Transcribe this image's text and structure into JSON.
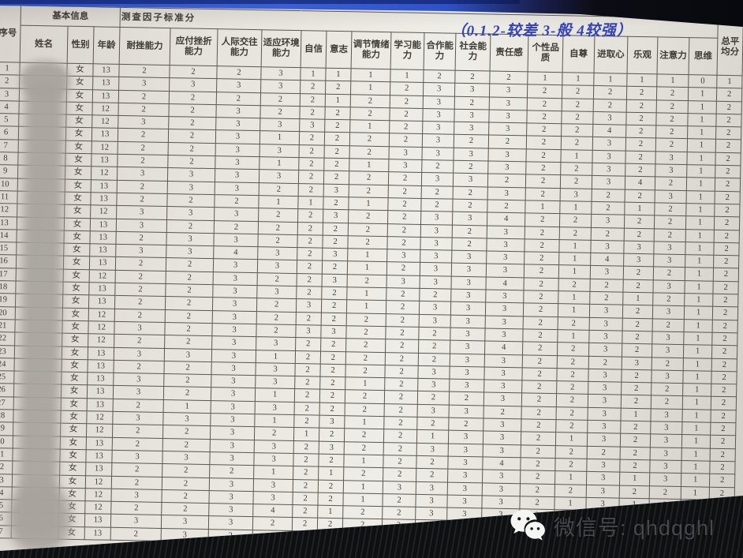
{
  "table": {
    "header_group": {
      "basic_info": "基本信息",
      "survey_title": "测查因子标准分",
      "handwritten_note": "（0.1.2-较差  3-般  4较强）",
      "avg_label": "总平均分"
    },
    "columns": [
      "序号",
      "姓名",
      "性别",
      "年龄",
      "耐挫能力",
      "应付挫折能力",
      "人际交往能力",
      "适应环境能力",
      "自信",
      "意志",
      "调节情绪能力",
      "学习能力",
      "合作能力",
      "社会能力",
      "责任感",
      "个性品质",
      "自尊",
      "进取心",
      "乐观",
      "注意力",
      "思维",
      "总平均分"
    ],
    "rows": [
      {
        "no": "1",
        "name": "",
        "gender": "女",
        "age": "13",
        "scores": [
          "2",
          "2",
          "2",
          "3",
          "1",
          "1",
          "1",
          "1",
          "2",
          "2",
          "2",
          "1",
          "1",
          "1",
          "1",
          "1",
          "0",
          "1"
        ]
      },
      {
        "no": "2",
        "name": "",
        "gender": "女",
        "age": "13",
        "scores": [
          "3",
          "3",
          "3",
          "3",
          "2",
          "2",
          "1",
          "2",
          "3",
          "3",
          "3",
          "2",
          "2",
          "2",
          "2",
          "2",
          "1",
          "2"
        ]
      },
      {
        "no": "3",
        "name": "",
        "gender": "女",
        "age": "13",
        "scores": [
          "2",
          "2",
          "2",
          "2",
          "2",
          "1",
          "2",
          "2",
          "3",
          "2",
          "3",
          "2",
          "2",
          "2",
          "2",
          "2",
          "1",
          "2"
        ]
      },
      {
        "no": "4",
        "name": "",
        "gender": "女",
        "age": "12",
        "scores": [
          "2",
          "2",
          "3",
          "2",
          "2",
          "2",
          "2",
          "2",
          "3",
          "3",
          "3",
          "2",
          "2",
          "3",
          "2",
          "2",
          "1",
          "2"
        ]
      },
      {
        "no": "5",
        "name": "",
        "gender": "女",
        "age": "12",
        "scores": [
          "3",
          "2",
          "3",
          "3",
          "3",
          "2",
          "1",
          "2",
          "3",
          "3",
          "3",
          "2",
          "2",
          "4",
          "2",
          "2",
          "1",
          "2"
        ]
      },
      {
        "no": "6",
        "name": "",
        "gender": "女",
        "age": "13",
        "scores": [
          "2",
          "2",
          "3",
          "1",
          "2",
          "2",
          "2",
          "2",
          "3",
          "2",
          "2",
          "2",
          "2",
          "3",
          "2",
          "2",
          "1",
          "2"
        ]
      },
      {
        "no": "7",
        "name": "",
        "gender": "女",
        "age": "12",
        "scores": [
          "2",
          "2",
          "3",
          "3",
          "2",
          "2",
          "2",
          "3",
          "3",
          "3",
          "3",
          "2",
          "1",
          "3",
          "2",
          "3",
          "1",
          "2"
        ]
      },
      {
        "no": "8",
        "name": "",
        "gender": "女",
        "age": "13",
        "scores": [
          "2",
          "2",
          "3",
          "1",
          "2",
          "2",
          "1",
          "3",
          "2",
          "2",
          "3",
          "2",
          "2",
          "3",
          "2",
          "3",
          "1",
          "2"
        ]
      },
      {
        "no": "9",
        "name": "",
        "gender": "女",
        "age": "12",
        "scores": [
          "3",
          "3",
          "3",
          "3",
          "2",
          "2",
          "2",
          "2",
          "3",
          "3",
          "2",
          "2",
          "2",
          "3",
          "4",
          "2",
          "1",
          "2"
        ]
      },
      {
        "no": "10",
        "name": "",
        "gender": "女",
        "age": "13",
        "scores": [
          "2",
          "3",
          "3",
          "2",
          "2",
          "3",
          "2",
          "2",
          "2",
          "2",
          "3",
          "2",
          "3",
          "2",
          "2",
          "3",
          "1",
          "2"
        ]
      },
      {
        "no": "11",
        "name": "",
        "gender": "女",
        "age": "13",
        "scores": [
          "2",
          "2",
          "2",
          "1",
          "1",
          "2",
          "1",
          "2",
          "2",
          "2",
          "2",
          "1",
          "1",
          "2",
          "1",
          "2",
          "1",
          "2"
        ]
      },
      {
        "no": "12",
        "name": "",
        "gender": "女",
        "age": "12",
        "scores": [
          "3",
          "3",
          "3",
          "2",
          "2",
          "3",
          "2",
          "2",
          "3",
          "3",
          "4",
          "2",
          "2",
          "3",
          "2",
          "2",
          "1",
          "2"
        ]
      },
      {
        "no": "13",
        "name": "",
        "gender": "女",
        "age": "13",
        "scores": [
          "3",
          "2",
          "2",
          "2",
          "2",
          "2",
          "2",
          "2",
          "3",
          "2",
          "3",
          "2",
          "2",
          "2",
          "2",
          "2",
          "1",
          "2"
        ]
      },
      {
        "no": "14",
        "name": "",
        "gender": "女",
        "age": "13",
        "scores": [
          "2",
          "3",
          "3",
          "2",
          "2",
          "2",
          "2",
          "2",
          "3",
          "2",
          "3",
          "2",
          "1",
          "3",
          "3",
          "3",
          "1",
          "2"
        ]
      },
      {
        "no": "15",
        "name": "",
        "gender": "女",
        "age": "13",
        "scores": [
          "3",
          "3",
          "4",
          "3",
          "2",
          "3",
          "1",
          "3",
          "3",
          "3",
          "3",
          "2",
          "1",
          "4",
          "3",
          "3",
          "1",
          "2"
        ]
      },
      {
        "no": "16",
        "name": "",
        "gender": "女",
        "age": "13",
        "scores": [
          "2",
          "2",
          "3",
          "3",
          "2",
          "2",
          "1",
          "2",
          "3",
          "3",
          "3",
          "2",
          "1",
          "3",
          "2",
          "2",
          "1",
          "2"
        ]
      },
      {
        "no": "17",
        "name": "",
        "gender": "女",
        "age": "12",
        "scores": [
          "2",
          "2",
          "3",
          "2",
          "2",
          "3",
          "2",
          "3",
          "3",
          "3",
          "4",
          "2",
          "2",
          "2",
          "2",
          "3",
          "1",
          "2"
        ]
      },
      {
        "no": "18",
        "name": "",
        "gender": "女",
        "age": "13",
        "scores": [
          "2",
          "2",
          "3",
          "3",
          "2",
          "2",
          "1",
          "2",
          "2",
          "3",
          "3",
          "2",
          "1",
          "2",
          "1",
          "2",
          "1",
          "2"
        ]
      },
      {
        "no": "19",
        "name": "",
        "gender": "女",
        "age": "13",
        "scores": [
          "2",
          "2",
          "3",
          "2",
          "3",
          "2",
          "1",
          "2",
          "3",
          "3",
          "3",
          "2",
          "1",
          "3",
          "2",
          "3",
          "1",
          "2"
        ]
      },
      {
        "no": "20",
        "name": "",
        "gender": "女",
        "age": "12",
        "scores": [
          "2",
          "2",
          "3",
          "2",
          "2",
          "2",
          "2",
          "2",
          "3",
          "3",
          "3",
          "2",
          "2",
          "3",
          "2",
          "2",
          "1",
          "2"
        ]
      },
      {
        "no": "21",
        "name": "",
        "gender": "女",
        "age": "12",
        "scores": [
          "3",
          "2",
          "3",
          "2",
          "3",
          "3",
          "2",
          "2",
          "2",
          "3",
          "3",
          "2",
          "1",
          "3",
          "2",
          "3",
          "1",
          "2"
        ]
      },
      {
        "no": "22",
        "name": "",
        "gender": "女",
        "age": "12",
        "scores": [
          "2",
          "2",
          "3",
          "3",
          "2",
          "2",
          "2",
          "2",
          "2",
          "3",
          "4",
          "2",
          "2",
          "3",
          "2",
          "3",
          "1",
          "2"
        ]
      },
      {
        "no": "23",
        "name": "",
        "gender": "女",
        "age": "13",
        "scores": [
          "3",
          "3",
          "3",
          "1",
          "2",
          "2",
          "2",
          "2",
          "2",
          "3",
          "3",
          "2",
          "2",
          "2",
          "3",
          "2",
          "1",
          "2"
        ]
      },
      {
        "no": "24",
        "name": "",
        "gender": "女",
        "age": "13",
        "scores": [
          "2",
          "2",
          "3",
          "3",
          "2",
          "2",
          "2",
          "2",
          "3",
          "3",
          "3",
          "2",
          "2",
          "3",
          "2",
          "3",
          "1",
          "2"
        ]
      },
      {
        "no": "25",
        "name": "",
        "gender": "女",
        "age": "13",
        "scores": [
          "3",
          "2",
          "3",
          "3",
          "2",
          "2",
          "1",
          "2",
          "3",
          "3",
          "3",
          "2",
          "2",
          "3",
          "2",
          "2",
          "1",
          "2"
        ]
      },
      {
        "no": "26",
        "name": "",
        "gender": "女",
        "age": "13",
        "scores": [
          "3",
          "2",
          "3",
          "1",
          "2",
          "2",
          "2",
          "2",
          "2",
          "2",
          "3",
          "2",
          "2",
          "3",
          "2",
          "2",
          "1",
          "2"
        ]
      },
      {
        "no": "27",
        "name": "",
        "gender": "女",
        "age": "13",
        "scores": [
          "2",
          "1",
          "3",
          "3",
          "2",
          "2",
          "2",
          "2",
          "3",
          "3",
          "2",
          "2",
          "2",
          "3",
          "1",
          "3",
          "1",
          "2"
        ]
      },
      {
        "no": "28",
        "name": "",
        "gender": "女",
        "age": "12",
        "scores": [
          "3",
          "3",
          "3",
          "1",
          "2",
          "3",
          "1",
          "2",
          "2",
          "2",
          "3",
          "2",
          "2",
          "3",
          "2",
          "3",
          "1",
          "2"
        ]
      },
      {
        "no": "29",
        "name": "",
        "gender": "女",
        "age": "12",
        "scores": [
          "2",
          "2",
          "3",
          "2",
          "1",
          "2",
          "2",
          "2",
          "1",
          "3",
          "3",
          "2",
          "1",
          "3",
          "2",
          "3",
          "1",
          "2"
        ]
      },
      {
        "no": "30",
        "name": "",
        "gender": "女",
        "age": "13",
        "scores": [
          "2",
          "2",
          "3",
          "3",
          "2",
          "3",
          "2",
          "2",
          "3",
          "3",
          "3",
          "2",
          "2",
          "2",
          "2",
          "3",
          "1",
          "2"
        ]
      },
      {
        "no": "31",
        "name": "",
        "gender": "女",
        "age": "13",
        "scores": [
          "3",
          "3",
          "3",
          "3",
          "2",
          "2",
          "1",
          "2",
          "2",
          "3",
          "4",
          "2",
          "2",
          "3",
          "2",
          "3",
          "1",
          "2"
        ]
      },
      {
        "no": "32",
        "name": "",
        "gender": "女",
        "age": "13",
        "scores": [
          "2",
          "2",
          "2",
          "1",
          "2",
          "1",
          "2",
          "2",
          "2",
          "3",
          "3",
          "2",
          "1",
          "3",
          "1",
          "3",
          "1",
          "2"
        ]
      },
      {
        "no": "33",
        "name": "",
        "gender": "女",
        "age": "12",
        "scores": [
          "2",
          "2",
          "3",
          "3",
          "2",
          "2",
          "1",
          "3",
          "3",
          "3",
          "3",
          "2",
          "2",
          "3",
          "2",
          "2",
          "1",
          "2"
        ]
      },
      {
        "no": "34",
        "name": "",
        "gender": "女",
        "age": "12",
        "scores": [
          "3",
          "2",
          "3",
          "3",
          "2",
          "2",
          "1",
          "2",
          "3",
          "3",
          "3",
          "2",
          "1",
          "3",
          "1",
          "3",
          "1",
          "2"
        ]
      },
      {
        "no": "35",
        "name": "",
        "gender": "女",
        "age": "12",
        "scores": [
          "2",
          "2",
          "3",
          "4",
          "2",
          "1",
          "2",
          "2",
          "3",
          "3",
          "3",
          "2",
          "2",
          "3",
          "1",
          "2",
          "1",
          "2"
        ]
      },
      {
        "no": "36",
        "name": "",
        "gender": "女",
        "age": "13",
        "scores": [
          "3",
          "3",
          "3",
          "2",
          "2",
          "2",
          "2",
          "2",
          "2",
          "2",
          "3",
          "2",
          "2",
          "",
          "",
          "",
          "",
          ""
        ]
      },
      {
        "no": "37",
        "name": "",
        "gender": "女",
        "age": "13",
        "scores": [
          "2",
          "3",
          "2",
          "2",
          "",
          "",
          "",
          "",
          "",
          "",
          "",
          "",
          "",
          "",
          "",
          "",
          "",
          ""
        ]
      }
    ]
  },
  "watermark": {
    "icon": "wechat-icon",
    "label": "微信号: qhdqghl"
  },
  "colors": {
    "paper": "#e9e6e0",
    "grid_line": "#5b5750",
    "ink_text": "#3e3b35",
    "handwriting_blue": "#3244b6",
    "desk_blue": "#2b4fc2",
    "desk_dark": "#0e0f12",
    "watermark_text": "#45494d"
  }
}
